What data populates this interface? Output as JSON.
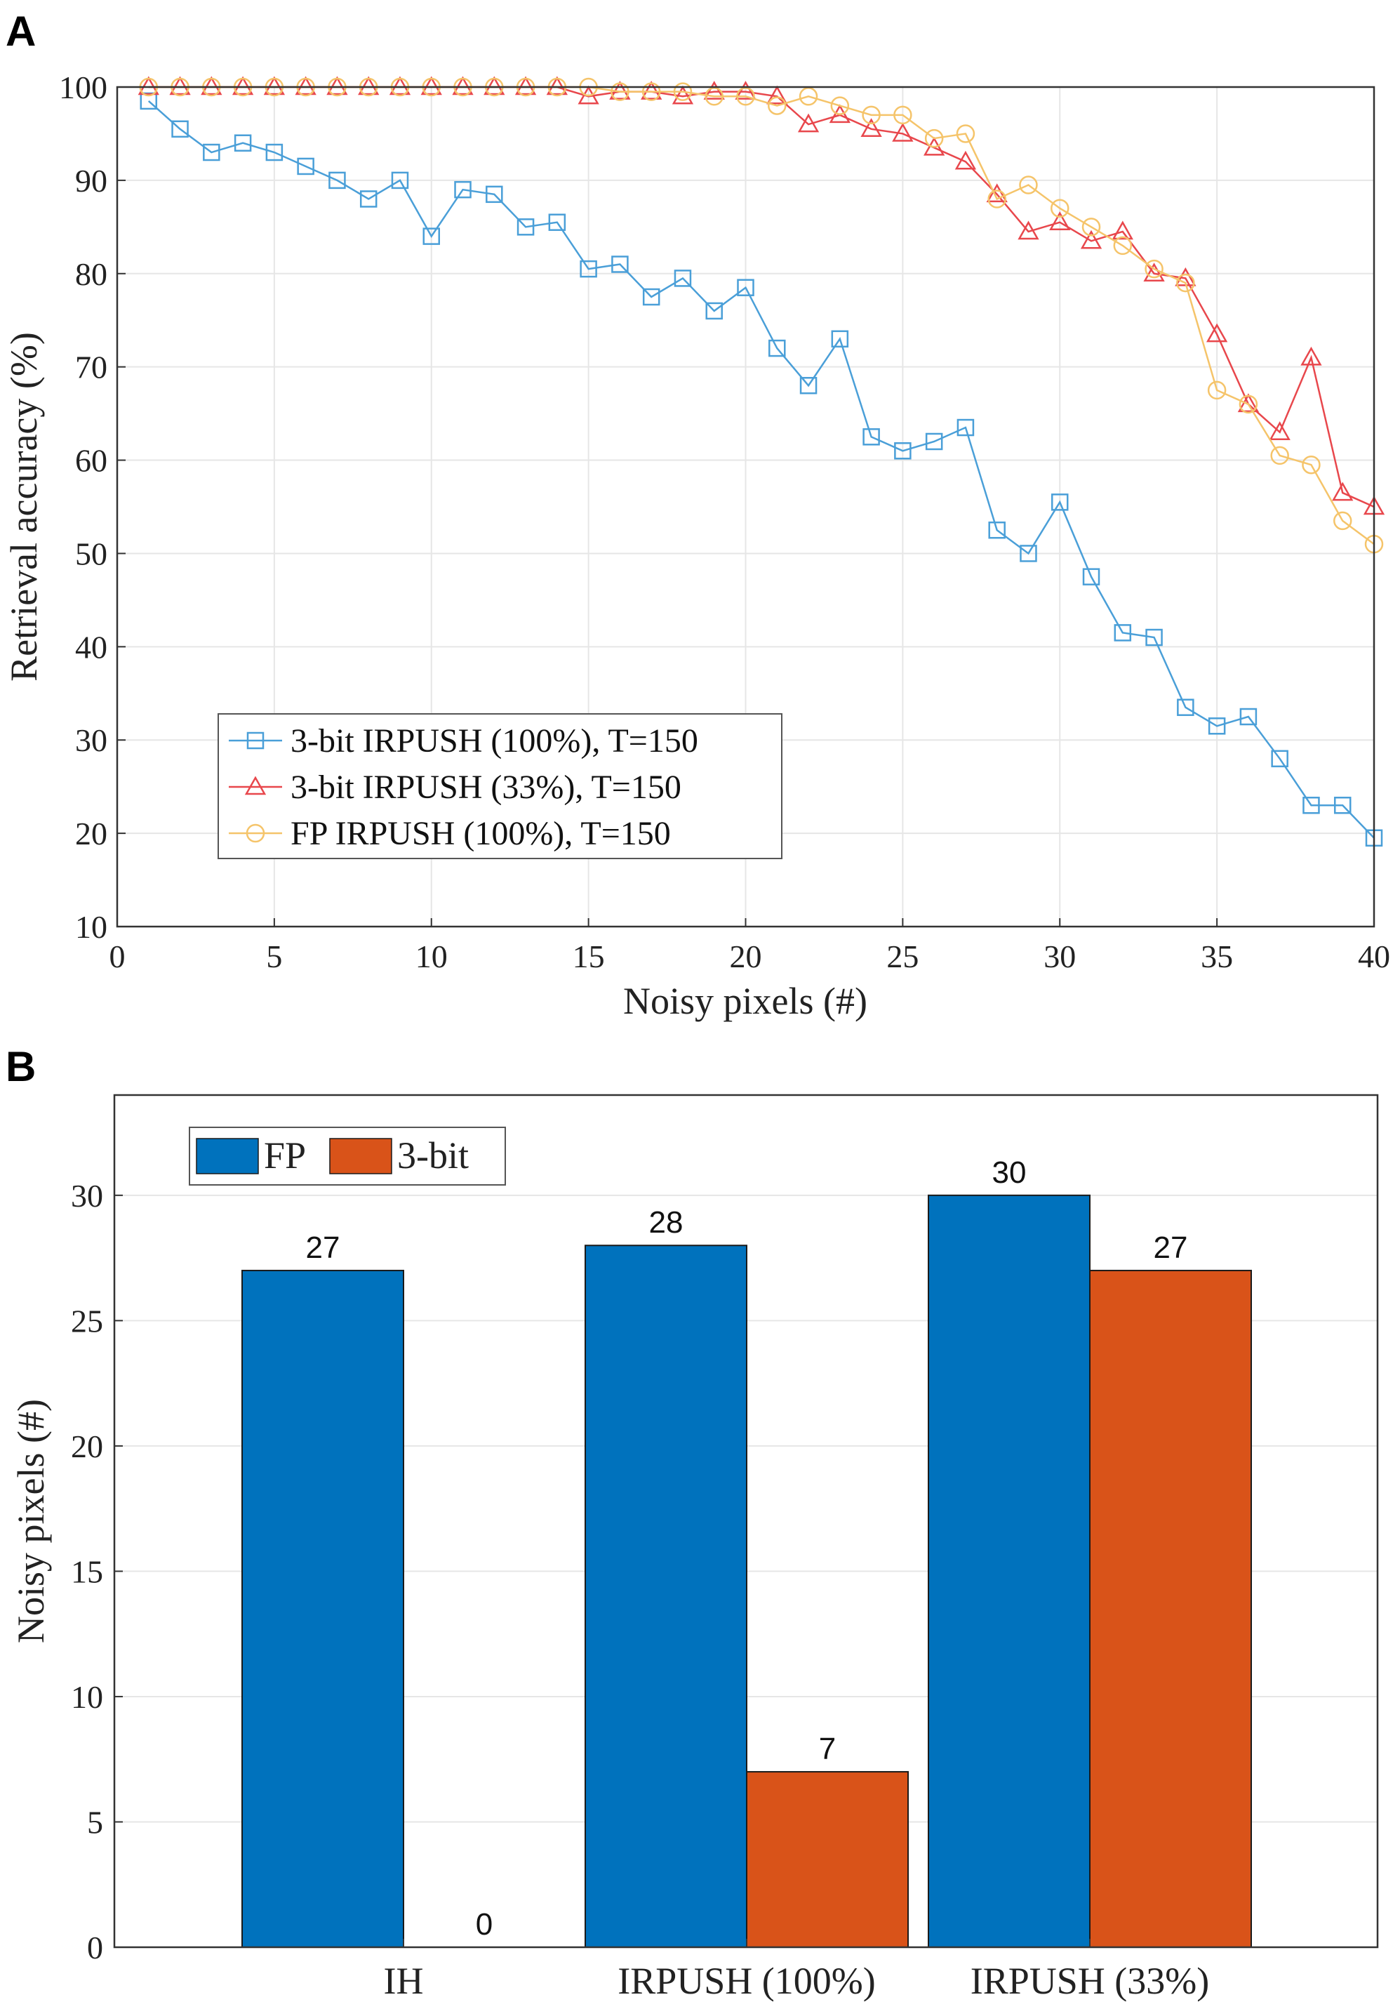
{
  "chart_data": [
    {
      "panel": "A",
      "type": "line",
      "xlabel": "Noisy pixels (#)",
      "ylabel": "Retrieval accuracy (%)",
      "xlim": [
        0,
        40
      ],
      "ylim": [
        10,
        100
      ],
      "xticks": [
        0,
        5,
        10,
        15,
        20,
        25,
        30,
        35,
        40
      ],
      "yticks": [
        10,
        20,
        30,
        40,
        50,
        60,
        70,
        80,
        90,
        100
      ],
      "grid": true,
      "legend_position": "bottom-left",
      "x": [
        1,
        2,
        3,
        4,
        5,
        6,
        7,
        8,
        9,
        10,
        11,
        12,
        13,
        14,
        15,
        16,
        17,
        18,
        19,
        20,
        21,
        22,
        23,
        24,
        25,
        26,
        27,
        28,
        29,
        30,
        31,
        32,
        33,
        34,
        35,
        36,
        37,
        38,
        39,
        40
      ],
      "series": [
        {
          "name": "3-bit IRPUSH (100%), T=150",
          "color": "#4a9fd8",
          "marker": "square",
          "values": [
            98.5,
            95.5,
            93,
            94,
            93,
            91.5,
            90,
            88,
            90,
            84,
            89,
            88.5,
            85,
            85.5,
            80.5,
            81,
            77.5,
            79.5,
            76,
            78.5,
            72,
            68,
            73,
            62.5,
            61,
            62,
            63.5,
            52.5,
            50,
            55.5,
            47.5,
            41.5,
            41,
            33.5,
            31.5,
            32.5,
            28,
            23,
            23,
            19.5
          ]
        },
        {
          "name": "3-bit IRPUSH (33%), T=150",
          "color": "#e8474c",
          "marker": "triangle",
          "values": [
            100,
            100,
            100,
            100,
            100,
            100,
            100,
            100,
            100,
            100,
            100,
            100,
            100,
            100,
            99,
            99.5,
            99.5,
            99,
            99.5,
            99.5,
            99,
            96,
            97,
            95.5,
            95,
            93.5,
            92,
            88.5,
            84.5,
            85.5,
            83.5,
            84.5,
            80,
            79.5,
            73.5,
            66,
            63,
            71,
            56.5,
            55
          ]
        },
        {
          "name": "FP IRPUSH (100%), T=150",
          "color": "#f5c46a",
          "marker": "circle",
          "values": [
            100,
            100,
            100,
            100,
            100,
            100,
            100,
            100,
            100,
            100,
            100,
            100,
            100,
            100,
            100,
            99.5,
            99.5,
            99.5,
            99,
            99,
            98,
            99,
            98,
            97,
            97,
            94.5,
            95,
            88,
            89.5,
            87,
            85,
            83,
            80.5,
            79,
            67.5,
            66,
            60.5,
            59.5,
            53.5,
            51
          ]
        }
      ]
    },
    {
      "panel": "B",
      "type": "bar",
      "xlabel": "",
      "ylabel": "Noisy pixels (#)",
      "ylim": [
        0,
        34
      ],
      "yticks": [
        0,
        5,
        10,
        15,
        20,
        25,
        30
      ],
      "grid": true,
      "legend_position": "top-left",
      "categories": [
        "IH",
        "IRPUSH (100%)",
        "IRPUSH (33%)"
      ],
      "series": [
        {
          "name": "FP",
          "color": "#0072bd",
          "values": [
            27,
            28,
            30
          ],
          "labels": [
            "27",
            "28",
            "30"
          ]
        },
        {
          "name": "3-bit",
          "color": "#d95319",
          "values": [
            0,
            7,
            27
          ],
          "labels": [
            "0",
            "7",
            "27"
          ]
        }
      ]
    }
  ]
}
